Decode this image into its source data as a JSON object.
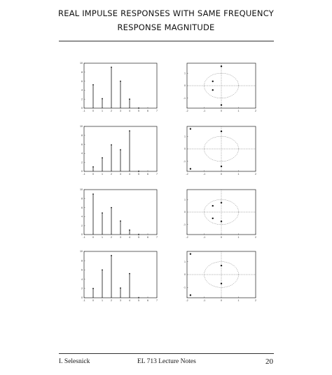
{
  "header": {
    "title_line1": "REAL IMPULSE RESPONSES WITH SAME FREQUENCY",
    "title_line2": "RESPONSE MAGNITUDE"
  },
  "footer": {
    "author": "I. Selesnick",
    "course": "EL 713 Lecture Notes",
    "page": "20"
  },
  "chart_data": [
    {
      "type": "bar",
      "panel": "impulse-1",
      "x": [
        0,
        1,
        2,
        3,
        4,
        5
      ],
      "values": [
        5.2,
        2.1,
        9.1,
        6.0,
        2.0,
        0
      ],
      "xlim": [
        -1,
        7
      ],
      "ylim": [
        0,
        10
      ],
      "x_ticks": [
        "-1",
        "0",
        "1",
        "2",
        "3",
        "4",
        "5",
        "6",
        "7"
      ],
      "y_ticks": [
        "0",
        "2",
        "4",
        "6",
        "8",
        "10"
      ]
    },
    {
      "type": "scatter",
      "panel": "zeros-1",
      "points": [
        [
          0,
          1.55
        ],
        [
          -0.5,
          0.35
        ],
        [
          -0.5,
          -0.35
        ],
        [
          0,
          -1.55
        ]
      ],
      "unit_circle": true,
      "xlim": [
        -2,
        2
      ],
      "ylim": [
        -1.8,
        1.8
      ],
      "x_ticks": [
        "-2",
        "-1",
        "0",
        "1",
        "2"
      ],
      "y_ticks": [
        "-1",
        "0",
        "1"
      ]
    },
    {
      "type": "bar",
      "panel": "impulse-2",
      "x": [
        0,
        1,
        2,
        3,
        4,
        5
      ],
      "values": [
        1.0,
        3.0,
        5.9,
        4.8,
        9.0,
        0
      ],
      "xlim": [
        -1,
        7
      ],
      "ylim": [
        0,
        10
      ],
      "x_ticks": [
        "-1",
        "0",
        "1",
        "2",
        "3",
        "4",
        "5",
        "6",
        "7"
      ],
      "y_ticks": [
        "0",
        "2",
        "4",
        "6",
        "8",
        "10"
      ]
    },
    {
      "type": "scatter",
      "panel": "zeros-2",
      "points": [
        [
          -1.8,
          1.6
        ],
        [
          0,
          1.4
        ],
        [
          0,
          -1.4
        ],
        [
          -1.8,
          -1.6
        ]
      ],
      "unit_circle": true,
      "xlim": [
        -2,
        2
      ],
      "ylim": [
        -1.8,
        1.8
      ],
      "x_ticks": [
        "-2",
        "-1",
        "0",
        "1",
        "2"
      ],
      "y_ticks": [
        "-1",
        "0",
        "1"
      ]
    },
    {
      "type": "bar",
      "panel": "impulse-3",
      "x": [
        0,
        1,
        2,
        3,
        4,
        5
      ],
      "values": [
        9.0,
        4.8,
        6.0,
        3.0,
        1.0,
        0
      ],
      "xlim": [
        -1,
        7
      ],
      "ylim": [
        0,
        10
      ],
      "x_ticks": [
        "-1",
        "0",
        "1",
        "2",
        "3",
        "4",
        "5",
        "6",
        "7"
      ],
      "y_ticks": [
        "0",
        "2",
        "4",
        "6",
        "8",
        "10"
      ]
    },
    {
      "type": "scatter",
      "panel": "zeros-3",
      "points": [
        [
          0,
          0.75
        ],
        [
          -0.5,
          0.5
        ],
        [
          -0.5,
          -0.5
        ],
        [
          0,
          -0.75
        ]
      ],
      "unit_circle": true,
      "xlim": [
        -2,
        2
      ],
      "ylim": [
        -1.8,
        1.8
      ],
      "x_ticks": [
        "-2",
        "-1",
        "0",
        "1",
        "2"
      ],
      "y_ticks": [
        "-1",
        "0",
        "1"
      ]
    },
    {
      "type": "bar",
      "panel": "impulse-4",
      "x": [
        0,
        1,
        2,
        3,
        4,
        5
      ],
      "values": [
        2.0,
        6.0,
        9.1,
        2.1,
        5.2,
        0
      ],
      "xlim": [
        -1,
        7
      ],
      "ylim": [
        0,
        10
      ],
      "x_ticks": [
        "-1",
        "0",
        "1",
        "2",
        "3",
        "4",
        "5",
        "6",
        "7"
      ],
      "y_ticks": [
        "0",
        "2",
        "4",
        "6",
        "8",
        "10"
      ]
    },
    {
      "type": "scatter",
      "panel": "zeros-4",
      "points": [
        [
          -1.8,
          1.6
        ],
        [
          0,
          0.7
        ],
        [
          0,
          -0.7
        ],
        [
          -1.8,
          -1.6
        ]
      ],
      "unit_circle": true,
      "xlim": [
        -2,
        2
      ],
      "ylim": [
        -1.8,
        1.8
      ],
      "x_ticks": [
        "-2",
        "-1",
        "0",
        "1",
        "2"
      ],
      "y_ticks": [
        "-1",
        "0",
        "1"
      ]
    }
  ]
}
